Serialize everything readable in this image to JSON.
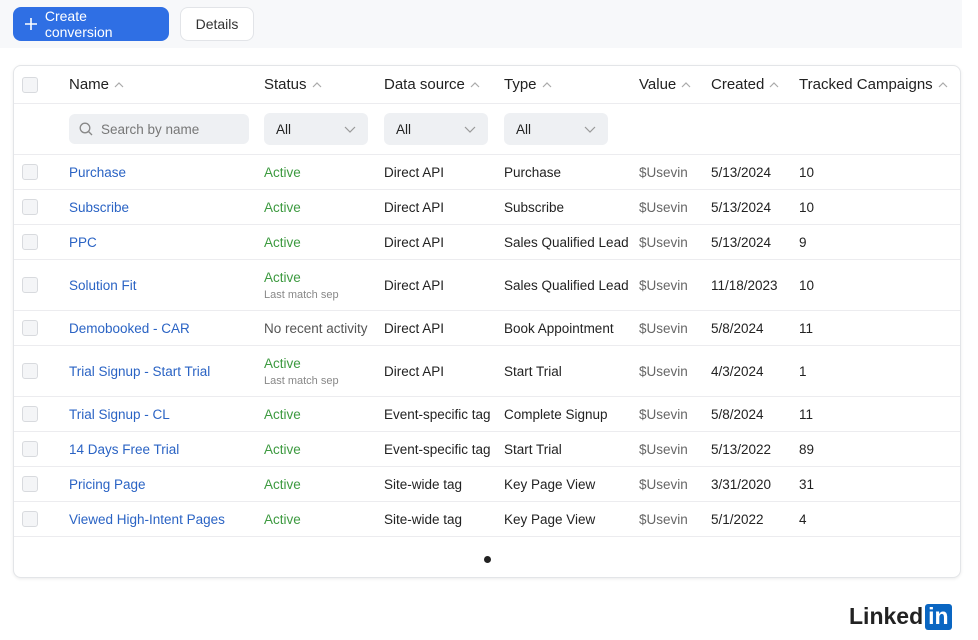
{
  "toolbar": {
    "create_button": "Create conversion",
    "details_button": "Details"
  },
  "table": {
    "columns": [
      "Name",
      "Status",
      "Data source",
      "Type",
      "Value",
      "Created",
      "Tracked Campaigns"
    ],
    "filters": {
      "search_placeholder": "Search by name",
      "status": "All",
      "data_source": "All",
      "type": "All"
    },
    "rows": [
      {
        "name": "Purchase",
        "status": "Active",
        "data_source": "Direct API",
        "type": "Purchase",
        "value": "$Usevin",
        "created": "5/13/2024",
        "tracked_campaigns": 10
      },
      {
        "name": "Subscribe",
        "status": "Active",
        "data_source": "Direct API",
        "type": "Subscribe",
        "value": "$Usevin",
        "created": "5/13/2024",
        "tracked_campaigns": 10
      },
      {
        "name": "PPC",
        "status": "Active",
        "data_source": "Direct API",
        "type": "Sales Qualified Lead",
        "value": "$Usevin",
        "created": "5/13/2024",
        "tracked_campaigns": 9
      },
      {
        "name": "Solution Fit",
        "status": "Active",
        "status_note": "Last match sep",
        "data_source": "Direct API",
        "type": "Sales Qualified Lead",
        "value": "$Usevin",
        "created": "11/18/2023",
        "tracked_campaigns": 10
      },
      {
        "name": "Demobooked - CAR",
        "status": "No recent activity",
        "data_source": "Direct API",
        "type": "Book Appointment",
        "value": "$Usevin",
        "created": "5/8/2024",
        "tracked_campaigns": 11
      },
      {
        "name": "Trial Signup - Start Trial",
        "status": "Active",
        "status_note": "Last match sep",
        "data_source": "Direct API",
        "type": "Start Trial",
        "value": "$Usevin",
        "created": "4/3/2024",
        "tracked_campaigns": 1
      },
      {
        "name": "Trial Signup - CL",
        "status": "Active",
        "data_source": "Event-specific tag",
        "type": "Complete Signup",
        "value": "$Usevin",
        "created": "5/8/2024",
        "tracked_campaigns": 11
      },
      {
        "name": "14 Days Free Trial",
        "status": "Active",
        "data_source": "Event-specific tag",
        "type": "Start Trial",
        "value": "$Usevin",
        "created": "5/13/2022",
        "tracked_campaigns": 89
      },
      {
        "name": "Pricing Page",
        "status": "Active",
        "data_source": "Site-wide tag",
        "type": "Key Page View",
        "value": "$Usevin",
        "created": "3/31/2020",
        "tracked_campaigns": 31
      },
      {
        "name": "Viewed High-Intent Pages",
        "status": "Active",
        "data_source": "Site-wide tag",
        "type": "Key Page View",
        "value": "$Usevin",
        "created": "5/1/2022",
        "tracked_campaigns": 4
      }
    ]
  },
  "footer": {
    "logo_text": "Linked",
    "logo_box": "in"
  }
}
